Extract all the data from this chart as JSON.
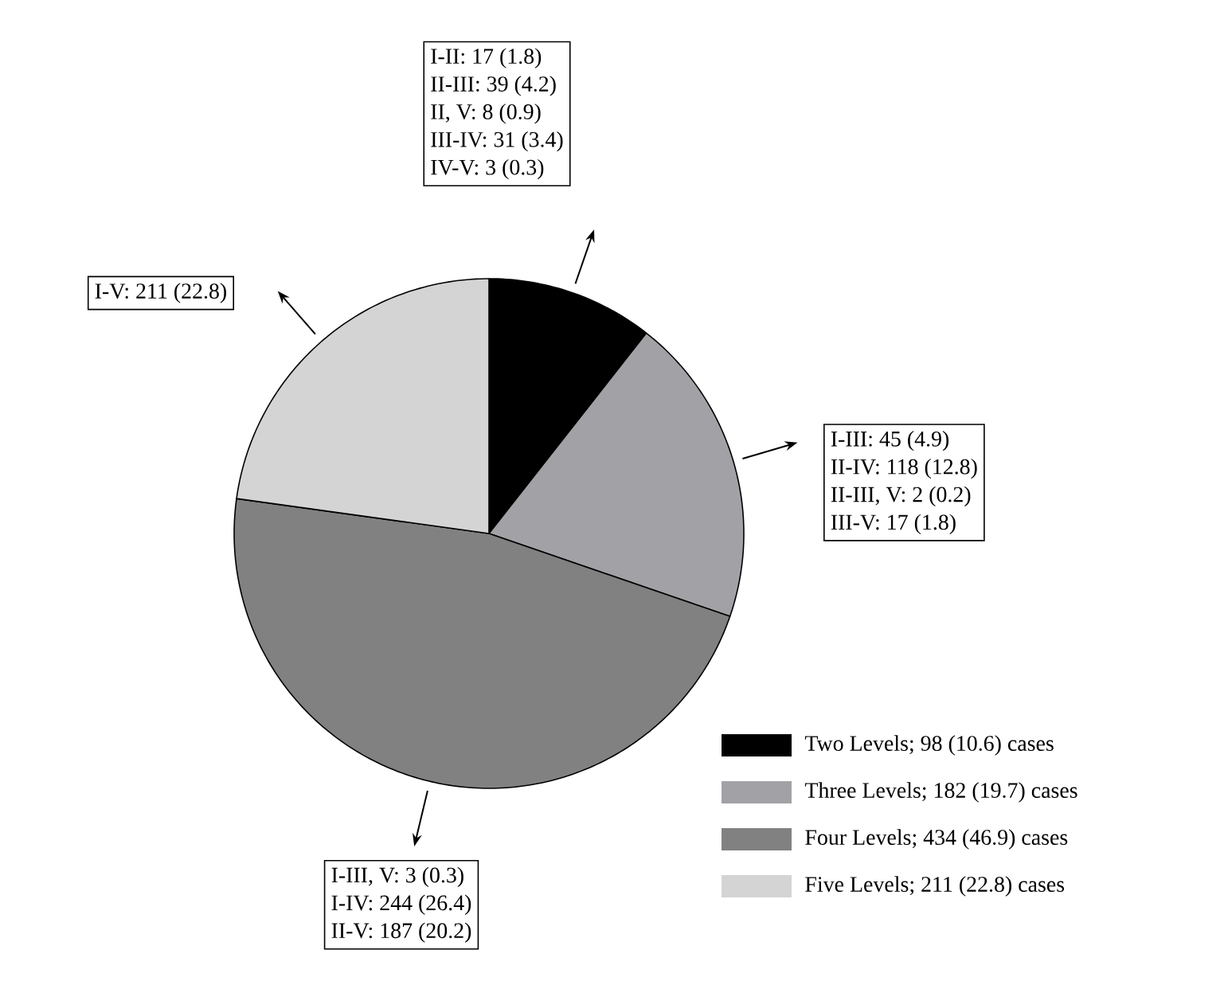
{
  "chart_data": {
    "type": "pie",
    "categories": [
      "Two Levels; 98 (10.6) cases",
      "Three Levels; 182 (19.7) cases",
      "Four Levels; 434 (46.9) cases",
      "Five Levels; 211 (22.8) cases"
    ],
    "values": [
      98,
      182,
      434,
      211
    ],
    "colors": [
      "#000000",
      "#a2a2a6",
      "#818181",
      "#d4d4d4"
    ],
    "legend": "bottom right",
    "annotations": [
      "I-II: 17 (1.8)",
      "II-III: 39 (4.2)",
      "II, V: 8 (0.9)",
      "III-IV: 31 (3.4)",
      "IV-V: 3 (0.3)",
      "I-III: 45 (4.9)",
      "II-IV: 118 (12.8)",
      "II-III, V: 2 (0.2)",
      "III-V: 17 (1.8)",
      "I-III, V: 3 (0.3)",
      "I-IV: 244 (26.4)",
      "II-V: 187 (20.2)",
      "I-V: 211 (22.8)"
    ]
  }
}
